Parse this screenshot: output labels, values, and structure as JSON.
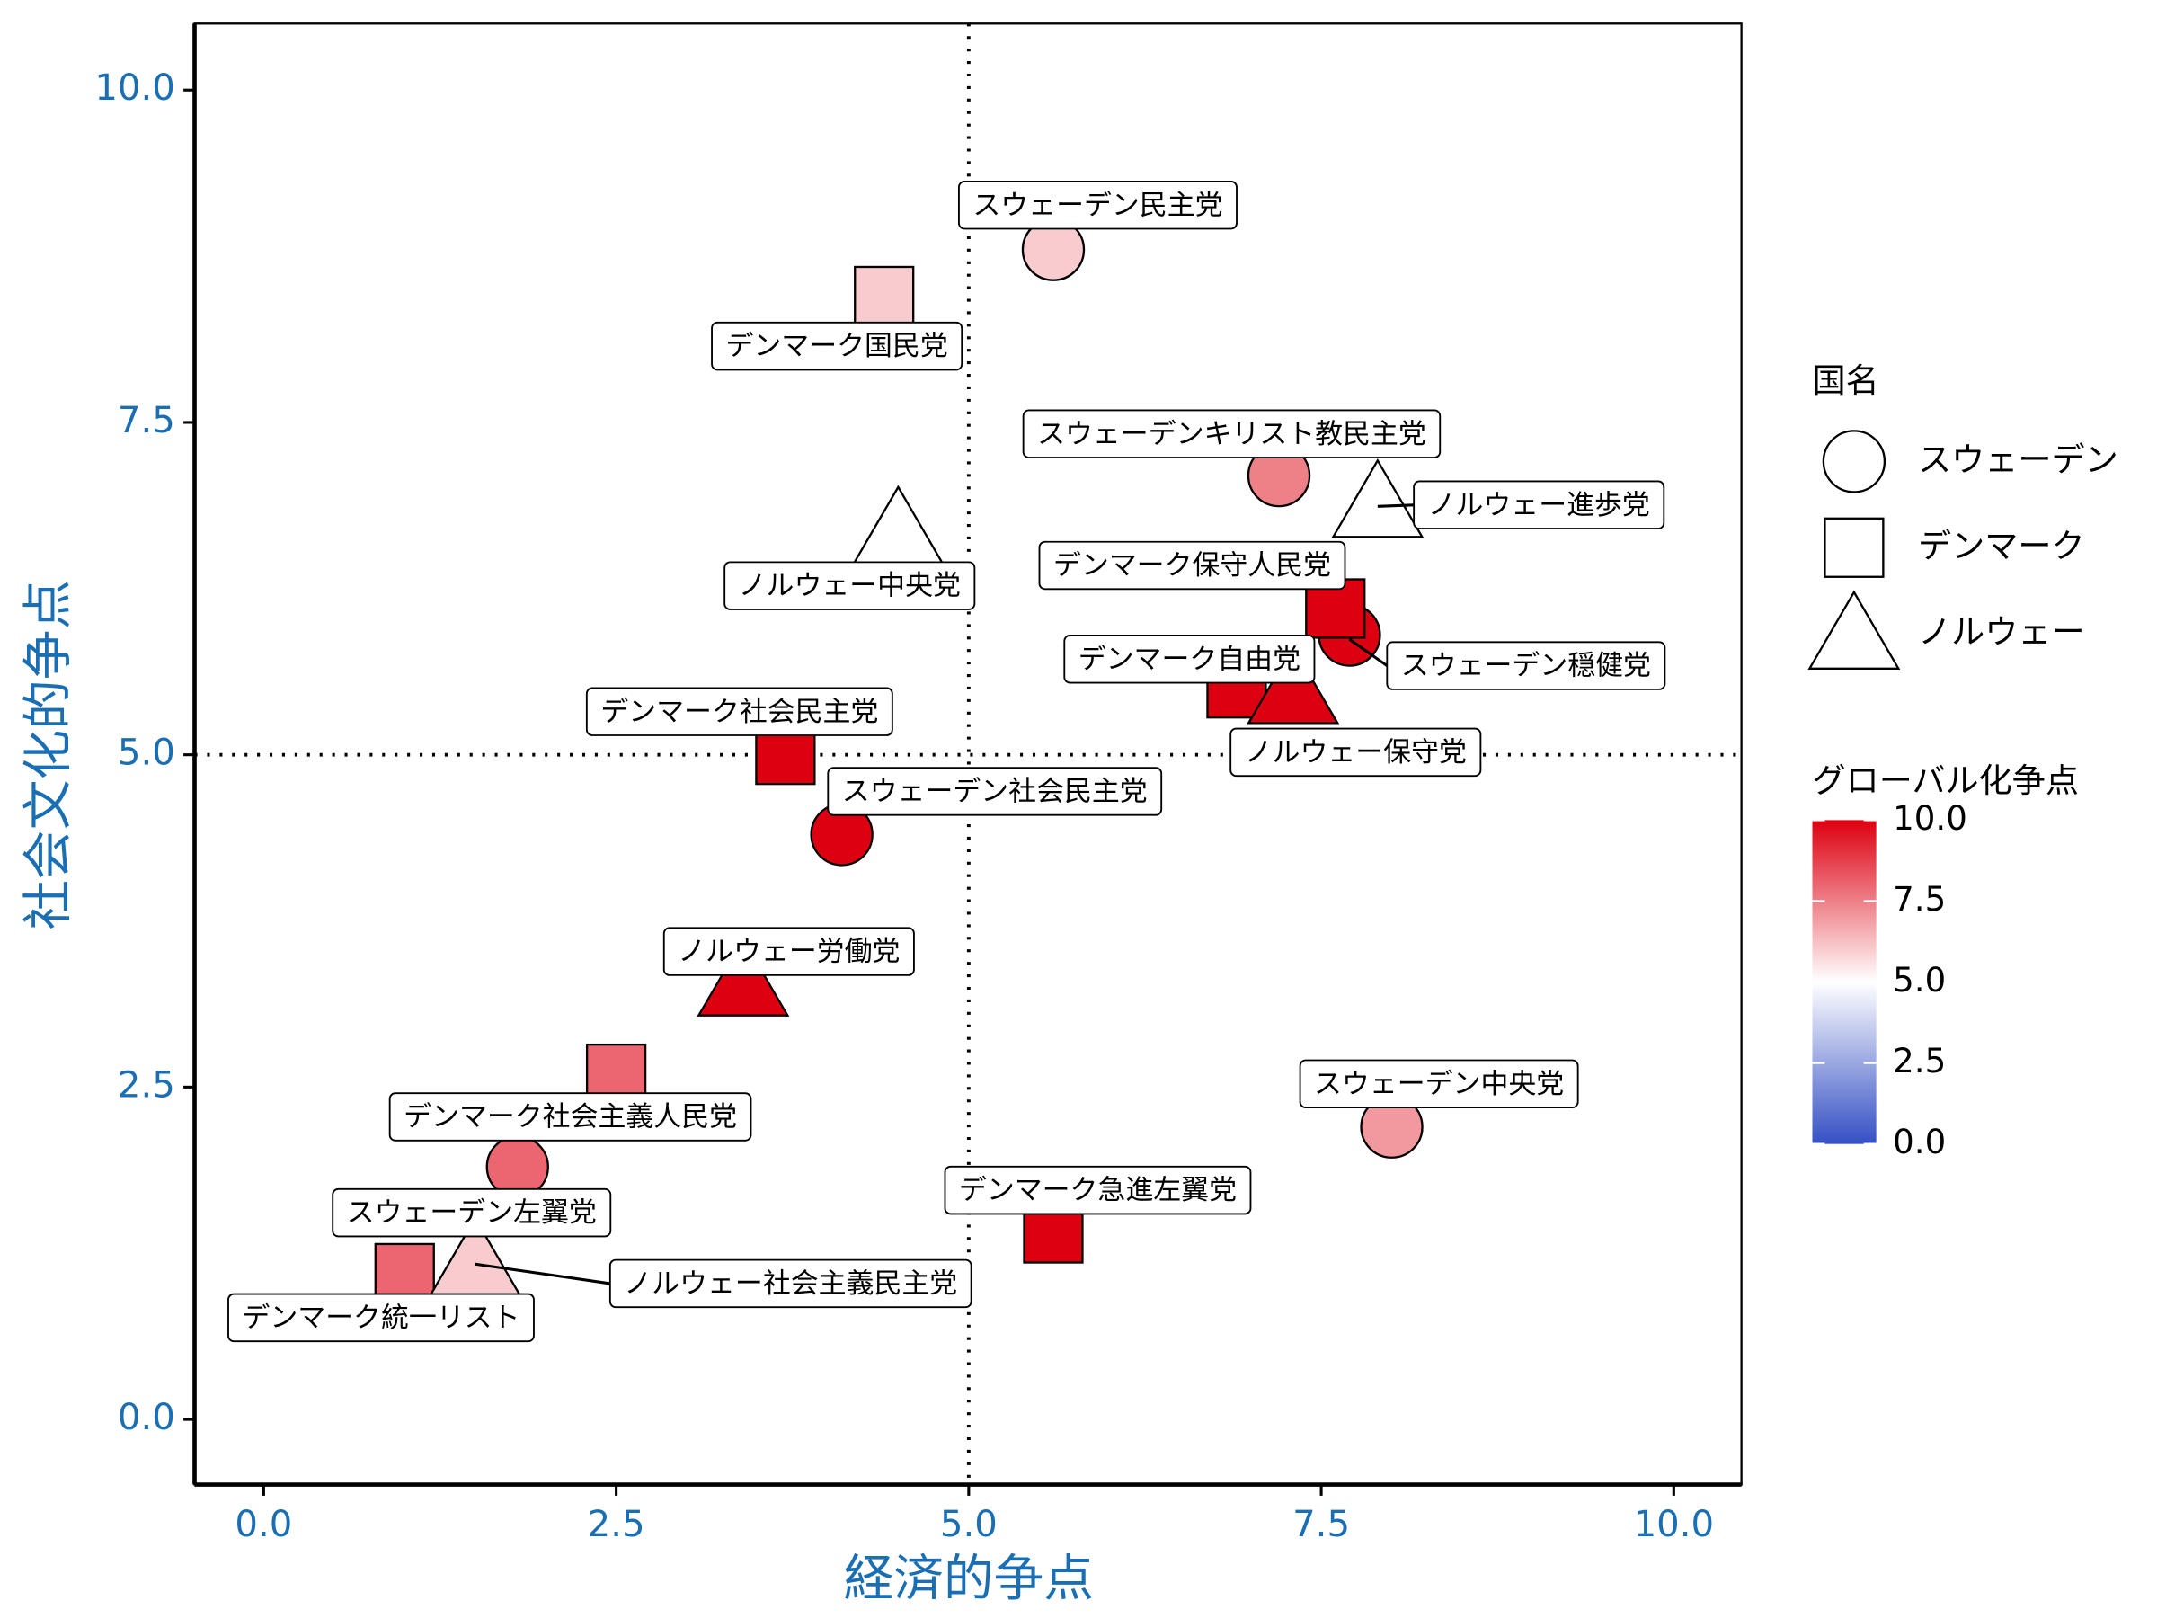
{
  "chart_data": {
    "type": "scatter",
    "x_label": "経済的争点",
    "y_label": "社会文化的争点",
    "xlim": [
      -0.49,
      10.48
    ],
    "ylim": [
      -0.49,
      10.5
    ],
    "xticks": [
      {
        "value": 0,
        "label": "0.0"
      },
      {
        "value": 2.5,
        "label": "2.5"
      },
      {
        "value": 5,
        "label": "5.0"
      },
      {
        "value": 7.5,
        "label": "7.5"
      },
      {
        "value": 10,
        "label": "10.0"
      }
    ],
    "yticks": [
      {
        "value": 0,
        "label": "0.0"
      },
      {
        "value": 2.5,
        "label": "2.5"
      },
      {
        "value": 5,
        "label": "5.0"
      },
      {
        "value": 7.5,
        "label": "7.5"
      },
      {
        "value": 10,
        "label": "10.0"
      }
    ],
    "hline": 5,
    "vline": 5,
    "shape_legend_title": "国名",
    "color_legend_title": "グローバル化争点",
    "color_lim": [
      0,
      10
    ],
    "colors": {
      "low": "#3550c4",
      "mid": "#ffffff",
      "high": "#dd0010"
    },
    "color_ticks": [
      {
        "value": 0,
        "label": "0.0"
      },
      {
        "value": 2.5,
        "label": "2.5"
      },
      {
        "value": 5,
        "label": "5.0"
      },
      {
        "value": 7.5,
        "label": "7.5"
      },
      {
        "value": 10,
        "label": "10.0"
      }
    ],
    "series": [
      {
        "name": "スウェーデン",
        "shape": "circle",
        "labels": [
          "スウェーデン民主党",
          "スウェーデンキリスト教民主党",
          "スウェーデン穏健党",
          "スウェーデン社会民主党",
          "スウェーデン中央党",
          "スウェーデン左翼党"
        ],
        "x": [
          5.6,
          7.2,
          7.7,
          4.1,
          8.0,
          1.8
        ],
        "y": [
          8.8,
          7.1,
          5.9,
          4.4,
          2.2,
          1.9
        ],
        "global": [
          6,
          7.5,
          10,
          10,
          7,
          8
        ]
      },
      {
        "name": "デンマーク",
        "shape": "square",
        "labels": [
          "デンマーク国民党",
          "デンマーク保守人民党",
          "デンマーク自由党",
          "デンマーク社会民主党",
          "デンマーク社会主義人民党",
          "デンマーク統一リスト",
          "デンマーク急進左翼党"
        ],
        "x": [
          4.4,
          7.6,
          6.9,
          3.7,
          2.5,
          1.0,
          5.6
        ],
        "y": [
          8.45,
          6.1,
          5.5,
          5.0,
          2.6,
          1.1,
          1.4
        ],
        "global": [
          6,
          10,
          10,
          10,
          8,
          8,
          10
        ]
      },
      {
        "name": "ノルウェー",
        "shape": "triangle",
        "labels": [
          "ノルウェー進歩党",
          "ノルウェー中央党",
          "ノルウェー保守党",
          "ノルウェー労働党",
          "ノルウェー社会主義民主党"
        ],
        "x": [
          7.9,
          4.5,
          7.3,
          3.4,
          1.5
        ],
        "y": [
          6.9,
          6.7,
          5.5,
          3.3,
          1.2
        ],
        "global": [
          5,
          5,
          10,
          10,
          6
        ]
      }
    ]
  }
}
